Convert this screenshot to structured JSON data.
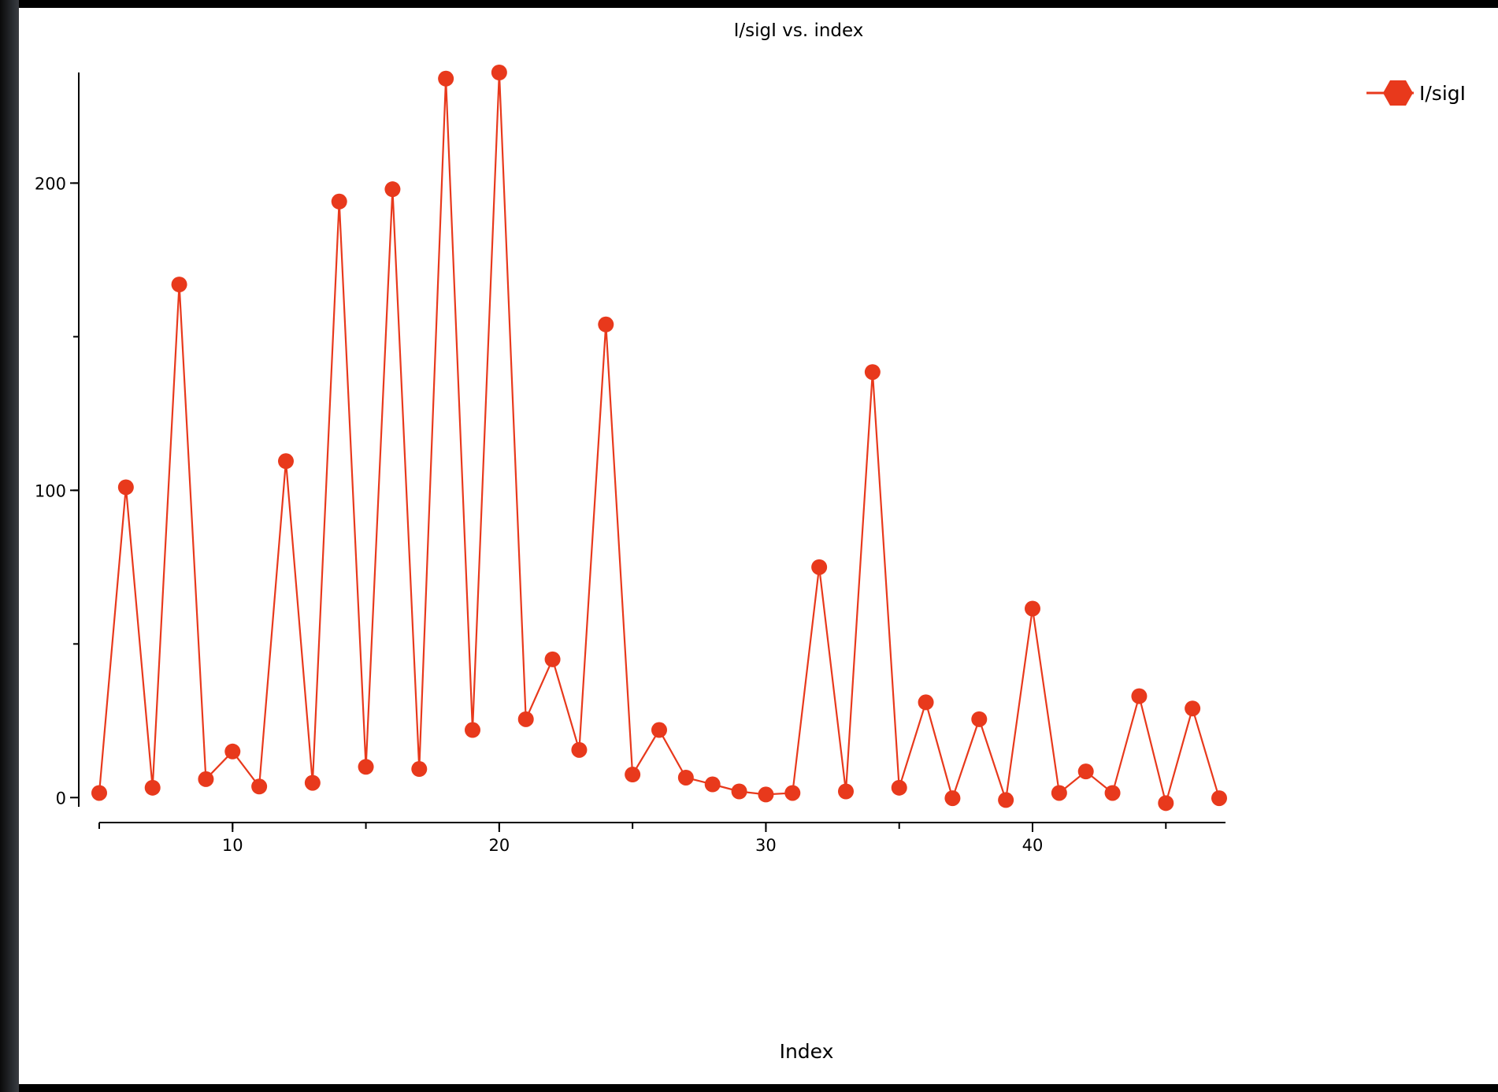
{
  "chart_data": {
    "type": "line",
    "title": "I/sigI vs. index",
    "xlabel": "Index",
    "ylabel": "",
    "xlim": [
      5,
      47
    ],
    "ylim": [
      -3,
      236
    ],
    "x_ticks": [
      10,
      20,
      30,
      40
    ],
    "y_ticks": [
      0,
      100,
      200
    ],
    "x_minor_step": 5,
    "y_minor_step": 50,
    "grid": false,
    "legend_position": "top-right",
    "series": [
      {
        "name": "I/sigI",
        "color": "#e8391c",
        "marker": "circle",
        "x": [
          5,
          6,
          7,
          8,
          9,
          10,
          11,
          12,
          13,
          14,
          15,
          16,
          17,
          18,
          19,
          20,
          21,
          22,
          23,
          24,
          25,
          26,
          27,
          28,
          29,
          30,
          31,
          32,
          33,
          34,
          35,
          36,
          37,
          38,
          39,
          40,
          41,
          42,
          43,
          44,
          45,
          46,
          47
        ],
        "y": [
          1.5,
          101,
          3.2,
          167,
          6,
          15,
          3.6,
          109.5,
          4.8,
          194,
          10,
          198,
          9.3,
          234,
          22,
          236,
          25.5,
          45,
          15.5,
          154,
          7.5,
          22,
          6.5,
          4.3,
          2,
          1,
          1.5,
          75,
          2,
          138.5,
          3.2,
          31,
          -0.2,
          25.5,
          -0.8,
          61.5,
          1.5,
          8.5,
          1.5,
          33,
          -1.8,
          29,
          -0.2
        ]
      }
    ]
  }
}
